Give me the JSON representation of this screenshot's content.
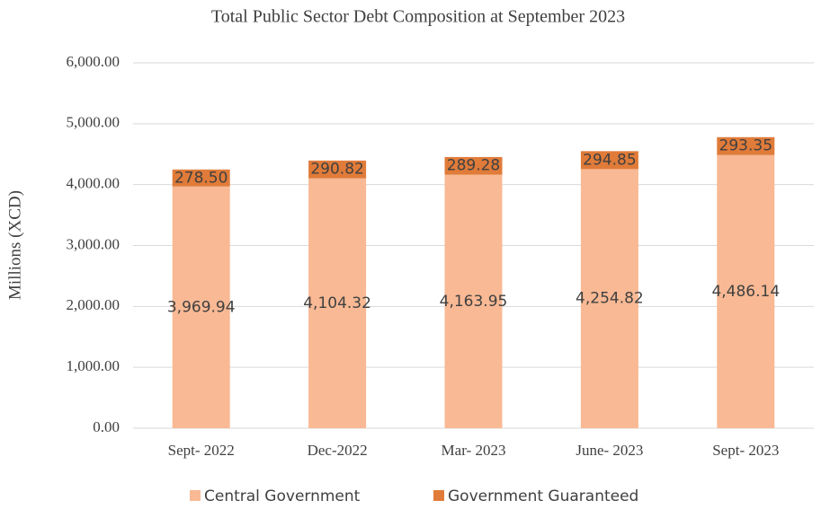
{
  "chart_data": {
    "type": "bar",
    "stacked": true,
    "title": "Total Public Sector Debt Composition at September 2023",
    "y_label": "Millions (XCD)",
    "categories": [
      "Sept- 2022",
      "Dec-2022",
      "Mar- 2023",
      "June- 2023",
      "Sept- 2023"
    ],
    "series": [
      {
        "name": "Central Government",
        "color": "#f8b994",
        "values": [
          3969.94,
          4104.32,
          4163.95,
          4254.82,
          4486.14
        ],
        "value_labels": [
          "3,969.94",
          "4,104.32",
          "4,163.95",
          "4,254.82",
          "4,486.14"
        ]
      },
      {
        "name": "Government Guaranteed",
        "color": "#e07b39",
        "values": [
          278.5,
          290.82,
          289.28,
          294.85,
          293.35
        ],
        "value_labels": [
          "278.50",
          "290.82",
          "289.28",
          "294.85",
          "293.35"
        ]
      }
    ],
    "ylim": [
      0,
      6000
    ],
    "yticks": [
      {
        "value": 0,
        "label": "0.00"
      },
      {
        "value": 1000,
        "label": "1,000.00"
      },
      {
        "value": 2000,
        "label": "2,000.00"
      },
      {
        "value": 3000,
        "label": "3,000.00"
      },
      {
        "value": 4000,
        "label": "4,000.00"
      },
      {
        "value": 5000,
        "label": "5,000.00"
      },
      {
        "value": 6000,
        "label": "6,000.00"
      }
    ],
    "grid": true,
    "legend": "bottom"
  }
}
